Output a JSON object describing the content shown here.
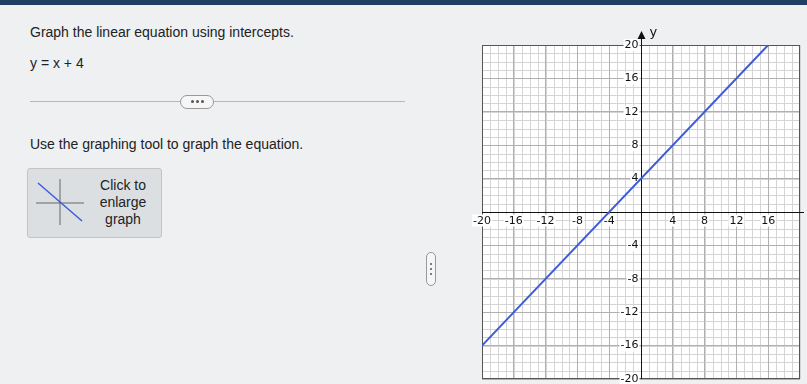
{
  "page": {
    "instruction": "Graph the linear equation using intercepts.",
    "equation": "y = x + 4",
    "prompt": "Use the graphing tool to graph the equation.",
    "button": "Click to enlarge graph"
  },
  "chart_data": {
    "type": "line",
    "ylabel": "y",
    "x": [
      -20,
      16
    ],
    "values": [
      -16,
      20
    ],
    "color": "#3d5bd6",
    "xlim": [
      -20,
      20
    ],
    "ylim": [
      -20,
      20
    ],
    "xticks": [
      -20,
      -16,
      -12,
      -8,
      -4,
      4,
      8,
      12,
      16
    ],
    "yticks": [
      -20,
      -16,
      -12,
      -8,
      -4,
      4,
      8,
      12,
      16,
      20
    ],
    "grid": true
  }
}
